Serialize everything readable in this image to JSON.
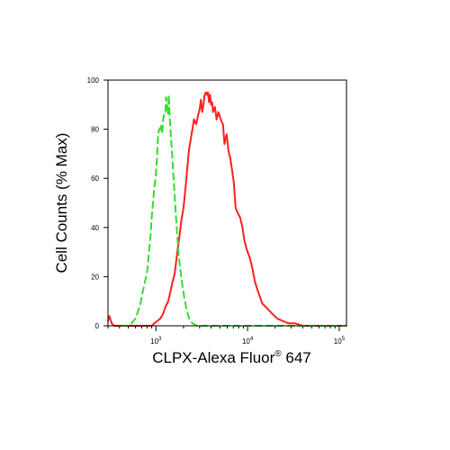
{
  "chart_data": {
    "type": "line",
    "xlabel": "CLPX-Alexa Fluor",
    "xlabel_superscript": "®",
    "xlabel_suffix": " 647",
    "ylabel": "Cell Counts (% Max)",
    "x_scale": "log",
    "xlim": [
      300,
      120000
    ],
    "ylim": [
      0,
      100
    ],
    "y_ticks": [
      0,
      20,
      40,
      60,
      80,
      100
    ],
    "x_ticks": [
      {
        "value": 1000,
        "base": "10",
        "exp": "3"
      },
      {
        "value": 10000,
        "base": "10",
        "exp": "4"
      },
      {
        "value": 100000,
        "base": "10",
        "exp": "5"
      }
    ],
    "grid": false,
    "legend": "none",
    "series": [
      {
        "color": "#ff2020",
        "style": "solid",
        "x": [
          300,
          310,
          330,
          350,
          380,
          430,
          480,
          550,
          600,
          680,
          740,
          800,
          860,
          900,
          960,
          1040,
          1120,
          1200,
          1280,
          1360,
          1440,
          1520,
          1600,
          1700,
          1800,
          1900,
          2000,
          2100,
          2200,
          2300,
          2400,
          2500,
          2600,
          2750,
          2900,
          3000,
          3100,
          3200,
          3300,
          3400,
          3500,
          3600,
          3700,
          3800,
          3900,
          4000,
          4100,
          4200,
          4400,
          4600,
          4800,
          5000,
          5200,
          5400,
          5600,
          5900,
          6200,
          6500,
          6800,
          7100,
          7400,
          7800,
          8300,
          8800,
          9200,
          9800,
          10500,
          11200,
          12000,
          13000,
          14500,
          16500,
          18500,
          21000,
          24000,
          28000,
          33000,
          40000,
          50000,
          65000,
          100000,
          120000
        ],
        "values": [
          2,
          4,
          1,
          0,
          0,
          0,
          0,
          0,
          0,
          0,
          0,
          0,
          0,
          0,
          1,
          2,
          3,
          5,
          8,
          10,
          14,
          18,
          21,
          29,
          36,
          43,
          48,
          56,
          64,
          72,
          76,
          80,
          84,
          82,
          86,
          88,
          92,
          87,
          90,
          94,
          95,
          94,
          95,
          91,
          94,
          90,
          91,
          87,
          89,
          84,
          87,
          85,
          83,
          82,
          74,
          78,
          71,
          68,
          63,
          58,
          48,
          46,
          44,
          40,
          35,
          31,
          28,
          24,
          18,
          14,
          9,
          7,
          5,
          3,
          2,
          1,
          1,
          0,
          0,
          0,
          0,
          0
        ]
      },
      {
        "color": "#33dd33",
        "style": "dashed",
        "x": [
          420,
          460,
          500,
          540,
          570,
          600,
          640,
          680,
          700,
          720,
          750,
          780,
          800,
          820,
          840,
          870,
          900,
          930,
          960,
          990,
          1020,
          1050,
          1080,
          1110,
          1140,
          1170,
          1200,
          1230,
          1260,
          1290,
          1320,
          1350,
          1380,
          1410,
          1440,
          1470,
          1500,
          1560,
          1620,
          1700,
          1780,
          1860,
          1950,
          2050,
          2150,
          2300,
          2500,
          2800,
          3300,
          4000,
          6000,
          10000,
          30000,
          120000
        ],
        "values": [
          0,
          0,
          0,
          1,
          2,
          3,
          6,
          9,
          12,
          14,
          17,
          20,
          22,
          25,
          30,
          36,
          44,
          50,
          56,
          60,
          66,
          76,
          80,
          80,
          82,
          78,
          84,
          86,
          86,
          93,
          90,
          86,
          94,
          86,
          80,
          75,
          70,
          60,
          50,
          38,
          28,
          22,
          16,
          11,
          7,
          3,
          1,
          0,
          0,
          0,
          0,
          0,
          0,
          0
        ]
      }
    ]
  }
}
